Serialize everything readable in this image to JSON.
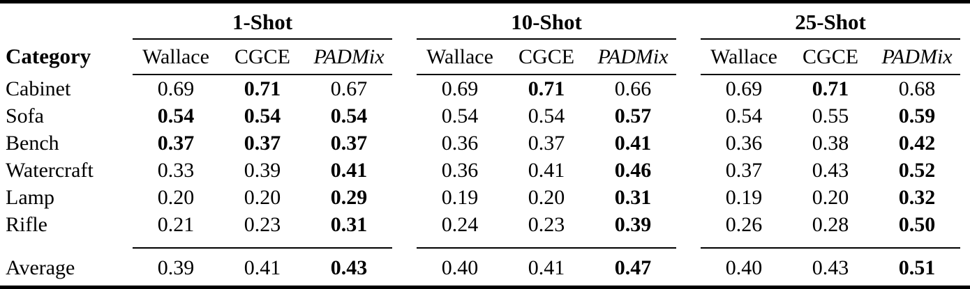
{
  "table": {
    "category_header": "Category",
    "groups": [
      {
        "label": "1-Shot"
      },
      {
        "label": "10-Shot"
      },
      {
        "label": "25-Shot"
      }
    ],
    "method_headers": [
      {
        "label": "Wallace",
        "italic": false
      },
      {
        "label": "CGCE",
        "italic": false
      },
      {
        "label": "PADMix",
        "italic": true
      }
    ],
    "rows": [
      {
        "category": "Cabinet",
        "values": [
          "0.69",
          "0.71",
          "0.67",
          "0.69",
          "0.71",
          "0.66",
          "0.69",
          "0.71",
          "0.68"
        ],
        "bold": [
          false,
          true,
          false,
          false,
          true,
          false,
          false,
          true,
          false
        ]
      },
      {
        "category": "Sofa",
        "values": [
          "0.54",
          "0.54",
          "0.54",
          "0.54",
          "0.54",
          "0.57",
          "0.54",
          "0.55",
          "0.59"
        ],
        "bold": [
          true,
          true,
          true,
          false,
          false,
          true,
          false,
          false,
          true
        ]
      },
      {
        "category": "Bench",
        "values": [
          "0.37",
          "0.37",
          "0.37",
          "0.36",
          "0.37",
          "0.41",
          "0.36",
          "0.38",
          "0.42"
        ],
        "bold": [
          true,
          true,
          true,
          false,
          false,
          true,
          false,
          false,
          true
        ]
      },
      {
        "category": "Watercraft",
        "values": [
          "0.33",
          "0.39",
          "0.41",
          "0.36",
          "0.41",
          "0.46",
          "0.37",
          "0.43",
          "0.52"
        ],
        "bold": [
          false,
          false,
          true,
          false,
          false,
          true,
          false,
          false,
          true
        ]
      },
      {
        "category": "Lamp",
        "values": [
          "0.20",
          "0.20",
          "0.29",
          "0.19",
          "0.20",
          "0.31",
          "0.19",
          "0.20",
          "0.32"
        ],
        "bold": [
          false,
          false,
          true,
          false,
          false,
          true,
          false,
          false,
          true
        ]
      },
      {
        "category": "Rifle",
        "values": [
          "0.21",
          "0.23",
          "0.31",
          "0.24",
          "0.23",
          "0.39",
          "0.26",
          "0.28",
          "0.50"
        ],
        "bold": [
          false,
          false,
          true,
          false,
          false,
          true,
          false,
          false,
          true
        ]
      }
    ],
    "average_row": {
      "category": "Average",
      "values": [
        "0.39",
        "0.41",
        "0.43",
        "0.40",
        "0.41",
        "0.47",
        "0.40",
        "0.43",
        "0.51"
      ],
      "bold": [
        false,
        false,
        true,
        false,
        false,
        true,
        false,
        false,
        true
      ]
    }
  },
  "colors": {
    "text": "#000000",
    "background": "#ffffff",
    "rule": "#000000"
  }
}
